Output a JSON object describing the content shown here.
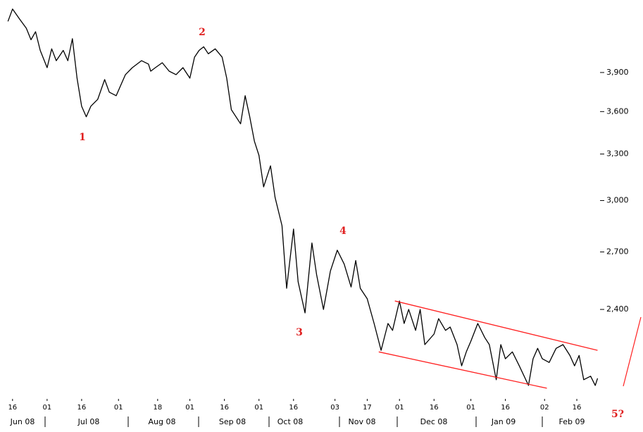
{
  "chart_data": {
    "type": "line",
    "yscale": "log",
    "grid": false,
    "xlim": [
      "2008-06-13",
      "2009-02-27"
    ],
    "ylim": [
      2030,
      4460
    ],
    "yticks": [
      {
        "value": 3900,
        "label": "3,900"
      },
      {
        "value": 3600,
        "label": "3,600"
      },
      {
        "value": 3300,
        "label": "3,300"
      },
      {
        "value": 3000,
        "label": "3,000"
      },
      {
        "value": 2700,
        "label": "2,700"
      },
      {
        "value": 2400,
        "label": "2,400"
      }
    ],
    "xticks": [
      {
        "value": "2008-06-16",
        "label": "16"
      },
      {
        "value": "2008-07-01",
        "label": "01"
      },
      {
        "value": "2008-07-16",
        "label": "16"
      },
      {
        "value": "2008-08-01",
        "label": "01"
      },
      {
        "value": "2008-08-18",
        "label": "18"
      },
      {
        "value": "2008-09-01",
        "label": "01"
      },
      {
        "value": "2008-09-16",
        "label": "16"
      },
      {
        "value": "2008-10-01",
        "label": "01"
      },
      {
        "value": "2008-10-16",
        "label": "16"
      },
      {
        "value": "2008-11-03",
        "label": "03"
      },
      {
        "value": "2008-11-17",
        "label": "17"
      },
      {
        "value": "2008-12-01",
        "label": "01"
      },
      {
        "value": "2008-12-16",
        "label": "16"
      },
      {
        "value": "2009-01-01",
        "label": "01"
      },
      {
        "value": "2009-01-16",
        "label": "16"
      },
      {
        "value": "2009-02-02",
        "label": "02"
      },
      {
        "value": "2009-02-16",
        "label": "16"
      }
    ],
    "month_labels": [
      "Jun 08",
      "Jul 08",
      "Aug 08",
      "Sep 08",
      "Oct 08",
      "Nov 08",
      "Dec 08",
      "Jan 09",
      "Feb 09"
    ],
    "annotations": [
      "1",
      "2",
      "3",
      "4",
      "5?"
    ],
    "x": [
      "2008-06-14",
      "2008-06-16",
      "2008-06-19",
      "2008-06-22",
      "2008-06-24",
      "2008-06-26",
      "2008-06-28",
      "2008-07-01",
      "2008-07-03",
      "2008-07-05",
      "2008-07-08",
      "2008-07-10",
      "2008-07-12",
      "2008-07-14",
      "2008-07-16",
      "2008-07-18",
      "2008-07-20",
      "2008-07-23",
      "2008-07-26",
      "2008-07-28",
      "2008-07-31",
      "2008-08-02",
      "2008-08-04",
      "2008-08-07",
      "2008-08-11",
      "2008-08-14",
      "2008-08-15",
      "2008-08-17",
      "2008-08-20",
      "2008-08-23",
      "2008-08-26",
      "2008-08-29",
      "2008-09-01",
      "2008-09-03",
      "2008-09-05",
      "2008-09-07",
      "2008-09-09",
      "2008-09-12",
      "2008-09-15",
      "2008-09-17",
      "2008-09-19",
      "2008-09-23",
      "2008-09-25",
      "2008-09-27",
      "2008-09-29",
      "2008-10-01",
      "2008-10-03",
      "2008-10-06",
      "2008-10-08",
      "2008-10-11",
      "2008-10-13",
      "2008-10-16",
      "2008-10-18",
      "2008-10-21",
      "2008-10-24",
      "2008-10-26",
      "2008-10-29",
      "2008-11-01",
      "2008-11-04",
      "2008-11-07",
      "2008-11-10",
      "2008-11-12",
      "2008-11-14",
      "2008-11-17",
      "2008-11-20",
      "2008-11-23",
      "2008-11-26",
      "2008-11-28",
      "2008-12-01",
      "2008-12-03",
      "2008-12-05",
      "2008-12-08",
      "2008-12-10",
      "2008-12-12",
      "2008-12-16",
      "2008-12-18",
      "2008-12-21",
      "2008-12-23",
      "2008-12-26",
      "2008-12-28",
      "2008-12-30",
      "2009-01-01",
      "2009-01-04",
      "2009-01-07",
      "2009-01-09",
      "2009-01-12",
      "2009-01-14",
      "2009-01-16",
      "2009-01-19",
      "2009-01-22",
      "2009-01-26",
      "2009-01-28",
      "2009-01-30",
      "2009-02-01",
      "2009-02-04",
      "2009-02-07",
      "2009-02-10",
      "2009-02-13",
      "2009-02-15",
      "2009-02-17",
      "2009-02-19",
      "2009-02-22",
      "2009-02-24",
      "2009-02-25"
    ],
    "series": [
      {
        "color": "#000000",
        "values": [
          4331,
          4442,
          4354,
          4270,
          4171,
          4240,
          4081,
          3939,
          4094,
          3996,
          4081,
          3996,
          4180,
          3855,
          3640,
          3562,
          3640,
          3692,
          3844,
          3746,
          3719,
          3800,
          3883,
          3939,
          3996,
          3968,
          3911,
          3939,
          3979,
          3911,
          3883,
          3939,
          3855,
          4025,
          4081,
          4111,
          4053,
          4094,
          4025,
          3855,
          3614,
          3511,
          3719,
          3562,
          3388,
          3291,
          3085,
          3221,
          3019,
          2850,
          2506,
          2830,
          2540,
          2383,
          2750,
          2578,
          2400,
          2596,
          2710,
          2634,
          2513,
          2653,
          2506,
          2453,
          2332,
          2207,
          2332,
          2299,
          2442,
          2332,
          2400,
          2299,
          2400,
          2233,
          2282,
          2355,
          2299,
          2315,
          2233,
          2138,
          2200,
          2249,
          2332,
          2266,
          2233,
          2078,
          2233,
          2169,
          2200,
          2138,
          2054,
          2169,
          2216,
          2169,
          2153,
          2216,
          2233,
          2184,
          2138,
          2184,
          2078,
          2093,
          2054,
          2084
        ]
      }
    ],
    "trendlines": [
      {
        "color": "#ff2020",
        "x": [
          "2008-11-29",
          "2009-02-25"
        ],
        "values": [
          2442,
          2207
        ]
      },
      {
        "color": "#ff2020",
        "x": [
          "2008-11-22",
          "2009-02-03"
        ],
        "values": [
          2200,
          2042
        ]
      }
    ]
  }
}
